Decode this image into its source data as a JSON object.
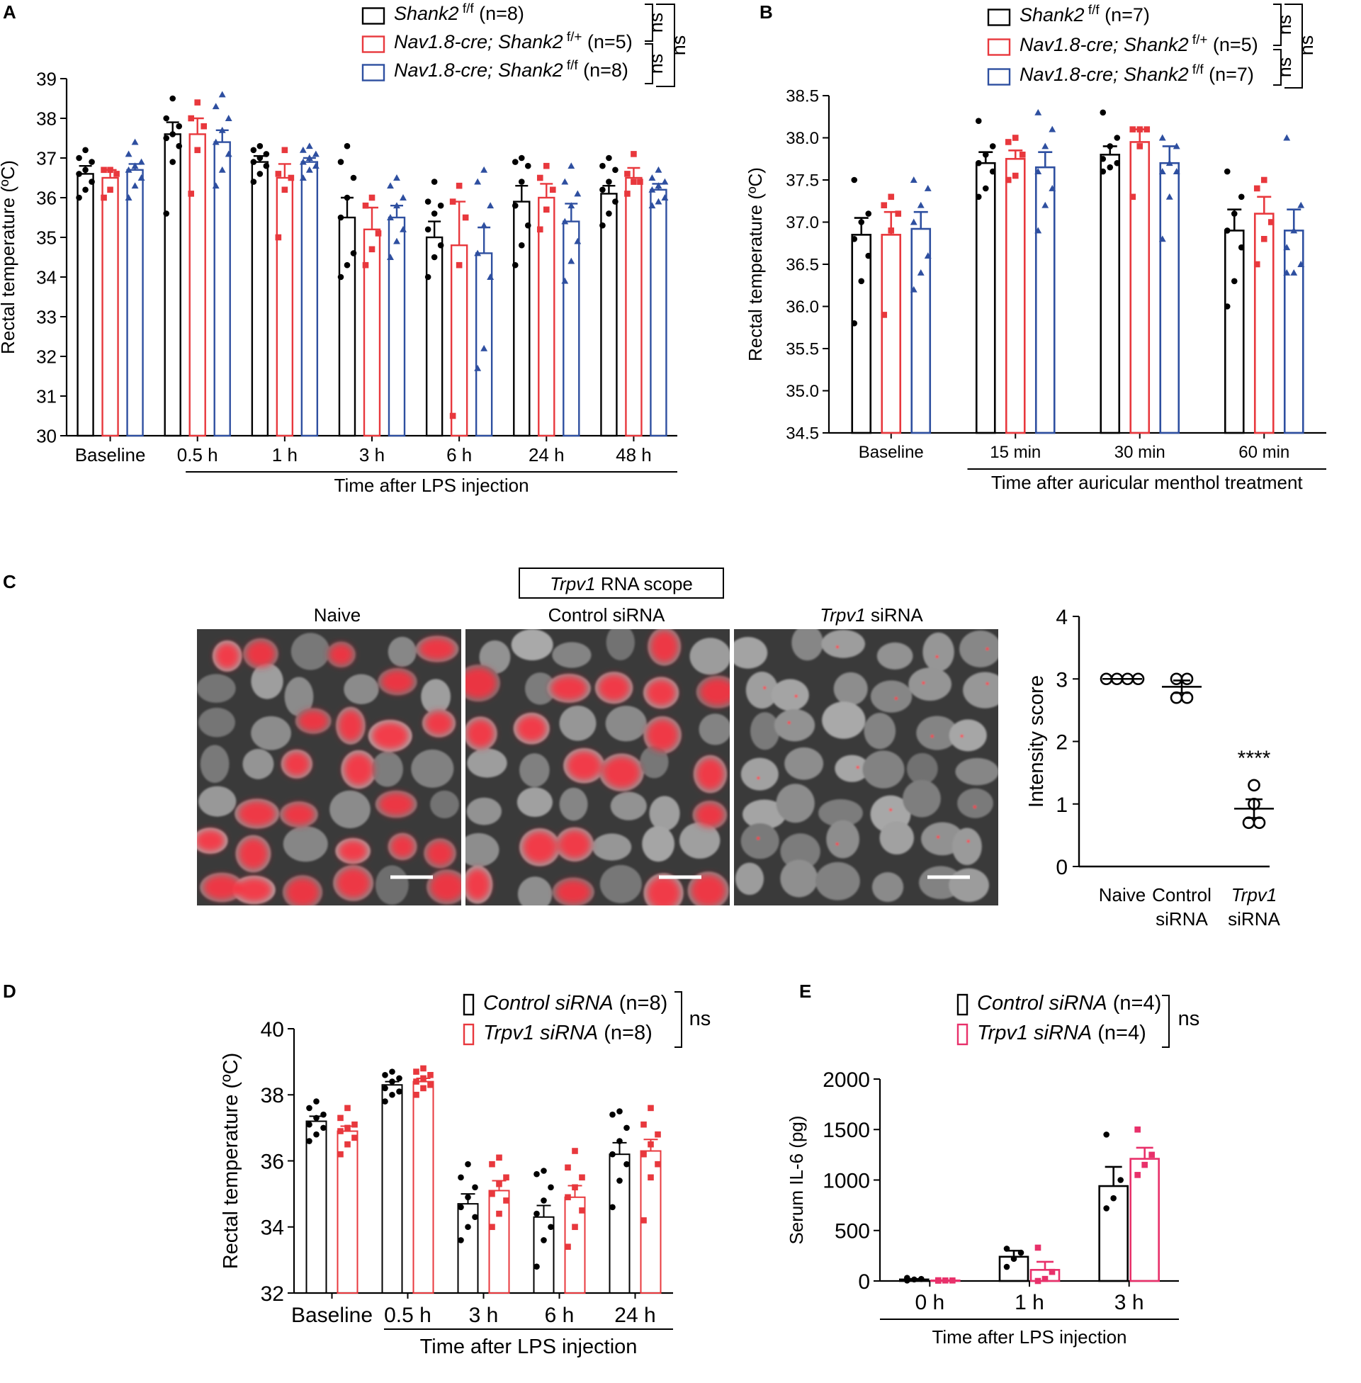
{
  "panels": {
    "A": "A",
    "B": "B",
    "C": "C",
    "D": "D",
    "E": "E"
  },
  "colors": {
    "black": "#000000",
    "red": "#e8383d",
    "blue": "#2e4fa0",
    "pink": "#e8306a"
  },
  "imaging": {
    "title": "Trpv1 RNA scope",
    "title_italic": "Trpv1",
    "title_rest": " RNA scope",
    "labels": [
      "Naive",
      "Control siRNA",
      "Trpv1 siRNA"
    ],
    "label3_italic": "Trpv1",
    "label3_rest": " siRNA"
  },
  "chart_data": [
    {
      "id": "A",
      "type": "bar",
      "title": "",
      "xlabel": "Time after LPS injection",
      "ylabel": "Rectal temperature (ºC)",
      "ylim": [
        30,
        39
      ],
      "yticks": [
        30,
        31,
        32,
        33,
        34,
        35,
        36,
        37,
        38,
        39
      ],
      "categories": [
        "Baseline",
        "0.5 h",
        "1 h",
        "3 h",
        "6 h",
        "24 h",
        "48 h"
      ],
      "bracket_from_category": 1,
      "legend_position": "top",
      "series": [
        {
          "name": "Shank2 f/f (n=8)",
          "legend_italic": "Shank2",
          "legend_sup": " f/f",
          "legend_rest": " (n=8)",
          "color": "black",
          "values": [
            36.6,
            37.6,
            36.9,
            35.5,
            35.0,
            35.9,
            36.1
          ],
          "sem": [
            0.2,
            0.3,
            0.15,
            0.5,
            0.4,
            0.4,
            0.2
          ],
          "points": [
            [
              36.0,
              36.2,
              36.4,
              36.6,
              36.7,
              36.9,
              37.0,
              37.2
            ],
            [
              35.6,
              36.9,
              37.3,
              37.5,
              37.6,
              37.8,
              38.0,
              38.5
            ],
            [
              36.4,
              36.6,
              36.8,
              36.9,
              37.0,
              37.1,
              37.2,
              37.3
            ],
            [
              34.0,
              34.3,
              34.6,
              35.5,
              36.0,
              36.5,
              36.9,
              37.3
            ],
            [
              34.0,
              34.5,
              34.8,
              35.2,
              35.6,
              35.8,
              35.9,
              36.4
            ],
            [
              34.3,
              34.8,
              35.3,
              35.8,
              36.4,
              36.8,
              36.9,
              37.0
            ],
            [
              35.3,
              35.6,
              35.9,
              36.2,
              36.4,
              36.7,
              36.8,
              37.0
            ]
          ],
          "marker": "circle"
        },
        {
          "name": "Nav1.8-cre; Shank2 f/+ (n=5)",
          "legend_italic": "Nav1.8-cre; Shank2",
          "legend_sup": " f/+",
          "legend_rest": " (n=5)",
          "color": "red",
          "values": [
            36.5,
            37.6,
            36.5,
            35.2,
            34.8,
            36.0,
            36.5
          ],
          "sem": [
            0.2,
            0.4,
            0.35,
            0.55,
            1.1,
            0.35,
            0.25
          ],
          "points": [
            [
              36.0,
              36.2,
              36.6,
              36.7,
              36.7
            ],
            [
              36.1,
              37.2,
              37.8,
              38.0,
              38.4
            ],
            [
              35.0,
              36.2,
              36.5,
              36.6,
              37.2
            ],
            [
              34.3,
              34.7,
              35.1,
              35.8,
              36.0
            ],
            [
              30.5,
              34.3,
              35.5,
              35.9,
              36.3
            ],
            [
              35.2,
              35.7,
              36.2,
              36.5,
              36.8
            ],
            [
              36.1,
              36.4,
              36.4,
              36.6,
              37.1
            ]
          ],
          "marker": "square"
        },
        {
          "name": "Nav1.8-cre; Shank2 f/f (n=8)",
          "legend_italic": "Nav1.8-cre; Shank2",
          "legend_sup": " f/f",
          "legend_rest": " (n=8)",
          "color": "blue",
          "values": [
            36.7,
            37.4,
            36.9,
            35.5,
            34.6,
            35.4,
            36.2
          ],
          "sem": [
            0.15,
            0.3,
            0.1,
            0.3,
            0.65,
            0.45,
            0.15
          ],
          "points": [
            [
              36.0,
              36.3,
              36.5,
              36.7,
              36.8,
              36.9,
              37.1,
              37.4
            ],
            [
              36.3,
              36.7,
              37.1,
              37.4,
              37.7,
              38.0,
              38.3,
              38.6
            ],
            [
              36.5,
              36.7,
              36.8,
              36.9,
              37.0,
              37.1,
              37.2,
              37.3
            ],
            [
              34.5,
              34.9,
              35.2,
              35.5,
              35.8,
              36.0,
              36.3,
              36.5
            ],
            [
              31.7,
              32.2,
              34.0,
              34.6,
              35.3,
              35.8,
              36.4,
              36.7
            ],
            [
              33.9,
              34.4,
              34.9,
              35.4,
              35.8,
              36.1,
              36.4,
              36.8
            ],
            [
              35.8,
              35.9,
              36.0,
              36.2,
              36.3,
              36.4,
              36.5,
              36.7
            ]
          ],
          "marker": "triangle"
        }
      ],
      "significance": [
        "ns",
        "ns",
        "ns"
      ]
    },
    {
      "id": "B",
      "type": "bar",
      "title": "",
      "xlabel": "Time after auricular menthol treatment",
      "ylabel": "Rectal temperature (ºC)",
      "ylim": [
        34.5,
        38.5
      ],
      "yticks": [
        "34.5",
        "35.0",
        "35.5",
        "36.0",
        "36.5",
        "37.0",
        "37.5",
        "38.0",
        "38.5"
      ],
      "categories": [
        "Baseline",
        "15 min",
        "30 min",
        "60 min"
      ],
      "bracket_from_category": 1,
      "legend_position": "top",
      "series": [
        {
          "name": "Shank2 f/f (n=7)",
          "legend_italic": "Shank2",
          "legend_sup": " f/f",
          "legend_rest": " (n=7)",
          "color": "black",
          "values": [
            36.85,
            37.7,
            37.8,
            36.9
          ],
          "sem": [
            0.2,
            0.13,
            0.1,
            0.25
          ],
          "points": [
            [
              35.8,
              36.3,
              36.6,
              36.8,
              37.0,
              37.1,
              37.5
            ],
            [
              37.3,
              37.4,
              37.6,
              37.7,
              37.8,
              37.9,
              38.2
            ],
            [
              37.6,
              37.65,
              37.7,
              37.75,
              37.9,
              38.0,
              38.3
            ],
            [
              36.0,
              36.3,
              36.7,
              36.9,
              37.1,
              37.3,
              37.6
            ]
          ],
          "marker": "circle"
        },
        {
          "name": "Nav1.8-cre; Shank2 f/+ (n=5)",
          "legend_italic": "Nav1.8-cre; Shank2",
          "legend_sup": " f/+",
          "legend_rest": " (n=5)",
          "color": "red",
          "values": [
            36.85,
            37.75,
            37.95,
            37.1
          ],
          "sem": [
            0.27,
            0.1,
            0.15,
            0.2
          ],
          "points": [
            [
              35.9,
              36.9,
              37.1,
              37.2,
              37.3
            ],
            [
              37.5,
              37.55,
              37.8,
              37.95,
              38.0
            ],
            [
              37.3,
              37.9,
              38.1,
              38.1,
              38.1
            ],
            [
              36.5,
              36.8,
              37.0,
              37.4,
              37.5
            ]
          ],
          "marker": "square"
        },
        {
          "name": "Nav1.8-cre; Shank2 f/f (n=7)",
          "legend_italic": "Nav1.8-cre; Shank2",
          "legend_sup": " f/f",
          "legend_rest": " (n=7)",
          "color": "blue",
          "values": [
            36.92,
            37.65,
            37.7,
            36.9
          ],
          "sem": [
            0.2,
            0.18,
            0.2,
            0.25
          ],
          "points": [
            [
              36.2,
              36.4,
              36.6,
              37.0,
              37.2,
              37.4,
              37.5
            ],
            [
              36.9,
              37.2,
              37.4,
              37.6,
              37.9,
              38.1,
              38.3
            ],
            [
              36.8,
              37.3,
              37.6,
              37.6,
              37.7,
              37.9,
              38.0
            ],
            [
              36.4,
              36.4,
              36.5,
              36.7,
              36.9,
              37.2,
              38.0
            ]
          ],
          "marker": "triangle"
        }
      ],
      "significance": [
        "ns",
        "ns",
        "ns"
      ]
    },
    {
      "id": "C",
      "type": "scatter",
      "title": "",
      "xlabel": "",
      "ylabel": "Intensity score",
      "ylim": [
        0,
        4
      ],
      "yticks": [
        0,
        1,
        2,
        3,
        4
      ],
      "categories": [
        "Naive",
        "Control siRNA",
        "Trpv1 siRNA"
      ],
      "category_lines": [
        [
          "Naive"
        ],
        [
          "Control",
          "siRNA"
        ],
        [
          "Trpv1",
          "siRNA"
        ]
      ],
      "means": [
        3.0,
        2.875,
        0.925
      ],
      "sem": [
        0,
        0.1,
        0.15
      ],
      "points": [
        [
          3,
          3,
          3,
          3
        ],
        [
          2.7,
          2.7,
          3.0,
          3.0
        ],
        [
          0.7,
          0.7,
          1.0,
          1.3
        ]
      ],
      "annotation": "****",
      "annotation_category": 2
    },
    {
      "id": "D",
      "type": "bar",
      "title": "",
      "xlabel": "Time after LPS injection",
      "ylabel": "Rectal temperature (ºC)",
      "ylim": [
        32,
        40
      ],
      "yticks": [
        32,
        34,
        36,
        38,
        40
      ],
      "categories": [
        "Baseline",
        "0.5 h",
        "3 h",
        "6 h",
        "24 h"
      ],
      "bracket_from_category": 1,
      "legend_position": "top",
      "series": [
        {
          "name": "Control siRNA (n=8)",
          "legend_italic": "Control siRNA",
          "legend_rest": " (n=8)",
          "color": "black",
          "values": [
            37.2,
            38.3,
            34.7,
            34.3,
            36.2
          ],
          "sem": [
            0.15,
            0.1,
            0.3,
            0.35,
            0.35
          ],
          "points": [
            [
              36.6,
              36.8,
              37.0,
              37.1,
              37.3,
              37.4,
              37.6,
              37.8
            ],
            [
              37.8,
              38.0,
              38.1,
              38.2,
              38.4,
              38.5,
              38.6,
              38.7
            ],
            [
              33.6,
              34.0,
              34.3,
              34.6,
              34.9,
              35.2,
              35.5,
              35.9
            ],
            [
              32.8,
              33.6,
              34.0,
              34.4,
              34.8,
              35.2,
              35.6,
              35.7
            ],
            [
              34.6,
              35.4,
              35.9,
              36.2,
              36.6,
              37.0,
              37.4,
              37.5
            ]
          ],
          "marker": "circle"
        },
        {
          "name": "Trpv1 siRNA (n=8)",
          "legend_italic": "Trpv1 siRNA",
          "legend_rest": " (n=8)",
          "color": "red",
          "values": [
            36.9,
            38.4,
            35.1,
            34.9,
            36.3
          ],
          "sem": [
            0.15,
            0.1,
            0.3,
            0.35,
            0.35
          ],
          "points": [
            [
              36.2,
              36.5,
              36.7,
              36.9,
              37.0,
              37.1,
              37.3,
              37.6
            ],
            [
              38.0,
              38.2,
              38.3,
              38.4,
              38.5,
              38.6,
              38.7,
              38.8
            ],
            [
              34.0,
              34.4,
              34.8,
              35.0,
              35.3,
              35.5,
              35.9,
              36.1
            ],
            [
              33.4,
              34.0,
              34.5,
              34.9,
              35.2,
              35.5,
              35.8,
              36.3
            ],
            [
              34.2,
              35.5,
              35.9,
              36.2,
              36.5,
              36.8,
              37.1,
              37.6
            ]
          ],
          "marker": "square"
        }
      ],
      "significance": [
        "ns"
      ]
    },
    {
      "id": "E",
      "type": "bar",
      "title": "",
      "xlabel": "Time after LPS injection",
      "ylabel": "Serum IL-6 (pg)",
      "ylim": [
        0,
        2000
      ],
      "yticks": [
        0,
        500,
        1000,
        1500,
        2000
      ],
      "categories": [
        "0 h",
        "1 h",
        "3 h"
      ],
      "bracket_from_category": 0,
      "legend_position": "top",
      "series": [
        {
          "name": "Control siRNA (n=4)",
          "legend_italic": "Control siRNA",
          "legend_rest": " (n=4)",
          "color": "black",
          "values": [
            15,
            240,
            940
          ],
          "sem": [
            5,
            60,
            190
          ],
          "points": [
            [
              5,
              15,
              20,
              30
            ],
            [
              140,
              220,
              280,
              320
            ],
            [
              720,
              820,
              1000,
              1450
            ]
          ],
          "marker": "circle"
        },
        {
          "name": "Trpv1 siRNA (n=4)",
          "legend_italic": "Trpv1 siRNA",
          "legend_rest": " (n=4)",
          "color": "pink",
          "values": [
            5,
            110,
            1210
          ],
          "sem": [
            2,
            80,
            110
          ],
          "points": [
            [
              3,
              5,
              5,
              7
            ],
            [
              0,
              20,
              90,
              330
            ],
            [
              1050,
              1150,
              1250,
              1500
            ]
          ],
          "marker": "square"
        }
      ],
      "significance": [
        "ns"
      ]
    }
  ]
}
